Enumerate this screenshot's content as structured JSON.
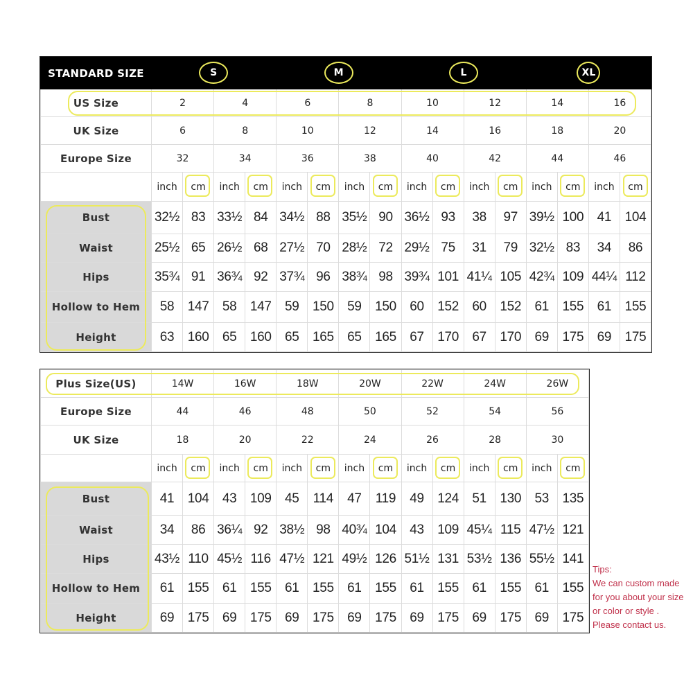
{
  "standard": {
    "header": "STANDARD SIZE",
    "letters": [
      "S",
      "M",
      "L",
      "XL"
    ],
    "size_rows": [
      {
        "label": "US Size",
        "values": [
          "2",
          "4",
          "6",
          "8",
          "10",
          "12",
          "14",
          "16"
        ]
      },
      {
        "label": "UK Size",
        "values": [
          "6",
          "8",
          "10",
          "12",
          "14",
          "16",
          "18",
          "20"
        ]
      },
      {
        "label": "Europe Size",
        "values": [
          "32",
          "34",
          "36",
          "38",
          "40",
          "42",
          "44",
          "46"
        ]
      }
    ],
    "units": [
      "inch",
      "cm"
    ],
    "measure_rows": [
      {
        "label": "Bust",
        "values": [
          "32½",
          "83",
          "33½",
          "84",
          "34½",
          "88",
          "35½",
          "90",
          "36½",
          "93",
          "38",
          "97",
          "39½",
          "100",
          "41",
          "104"
        ]
      },
      {
        "label": "Waist",
        "values": [
          "25½",
          "65",
          "26½",
          "68",
          "27½",
          "70",
          "28½",
          "72",
          "29½",
          "75",
          "31",
          "79",
          "32½",
          "83",
          "34",
          "86"
        ]
      },
      {
        "label": "Hips",
        "values": [
          "35¾",
          "91",
          "36¾",
          "92",
          "37¾",
          "96",
          "38¾",
          "98",
          "39¾",
          "101",
          "41¼",
          "105",
          "42¾",
          "109",
          "44¼",
          "112"
        ]
      },
      {
        "label": "Hollow to Hem",
        "values": [
          "58",
          "147",
          "58",
          "147",
          "59",
          "150",
          "59",
          "150",
          "60",
          "152",
          "60",
          "152",
          "61",
          "155",
          "61",
          "155"
        ]
      },
      {
        "label": "Height",
        "values": [
          "63",
          "160",
          "65",
          "160",
          "65",
          "165",
          "65",
          "165",
          "67",
          "170",
          "67",
          "170",
          "69",
          "175",
          "69",
          "175"
        ]
      }
    ]
  },
  "plus": {
    "size_rows": [
      {
        "label": "Plus Size(US)",
        "values": [
          "14W",
          "16W",
          "18W",
          "20W",
          "22W",
          "24W",
          "26W"
        ]
      },
      {
        "label": "Europe Size",
        "values": [
          "44",
          "46",
          "48",
          "50",
          "52",
          "54",
          "56"
        ]
      },
      {
        "label": "UK Size",
        "values": [
          "18",
          "20",
          "22",
          "24",
          "26",
          "28",
          "30"
        ]
      }
    ],
    "units": [
      "inch",
      "cm"
    ],
    "measure_rows": [
      {
        "label": "Bust",
        "values": [
          "41",
          "104",
          "43",
          "109",
          "45",
          "114",
          "47",
          "119",
          "49",
          "124",
          "51",
          "130",
          "53",
          "135"
        ]
      },
      {
        "label": "Waist",
        "values": [
          "34",
          "86",
          "36¼",
          "92",
          "38½",
          "98",
          "40¾",
          "104",
          "43",
          "109",
          "45¼",
          "115",
          "47½",
          "121"
        ]
      },
      {
        "label": "Hips",
        "values": [
          "43½",
          "110",
          "45½",
          "116",
          "47½",
          "121",
          "49½",
          "126",
          "51½",
          "131",
          "53½",
          "136",
          "55½",
          "141"
        ]
      },
      {
        "label": "Hollow to Hem",
        "values": [
          "61",
          "155",
          "61",
          "155",
          "61",
          "155",
          "61",
          "155",
          "61",
          "155",
          "61",
          "155",
          "61",
          "155"
        ]
      },
      {
        "label": "Height",
        "values": [
          "69",
          "175",
          "69",
          "175",
          "69",
          "175",
          "69",
          "175",
          "69",
          "175",
          "69",
          "175",
          "69",
          "175"
        ]
      }
    ]
  },
  "tips": {
    "title": "Tips:",
    "lines": [
      "We can custom made",
      "for you about your size",
      "or color or style .",
      "Please contact us."
    ]
  },
  "colors": {
    "highlight": "#ecea5c",
    "label_bg": "#d9d9d9",
    "header_bg": "#000000",
    "tips": "#c0304a"
  }
}
